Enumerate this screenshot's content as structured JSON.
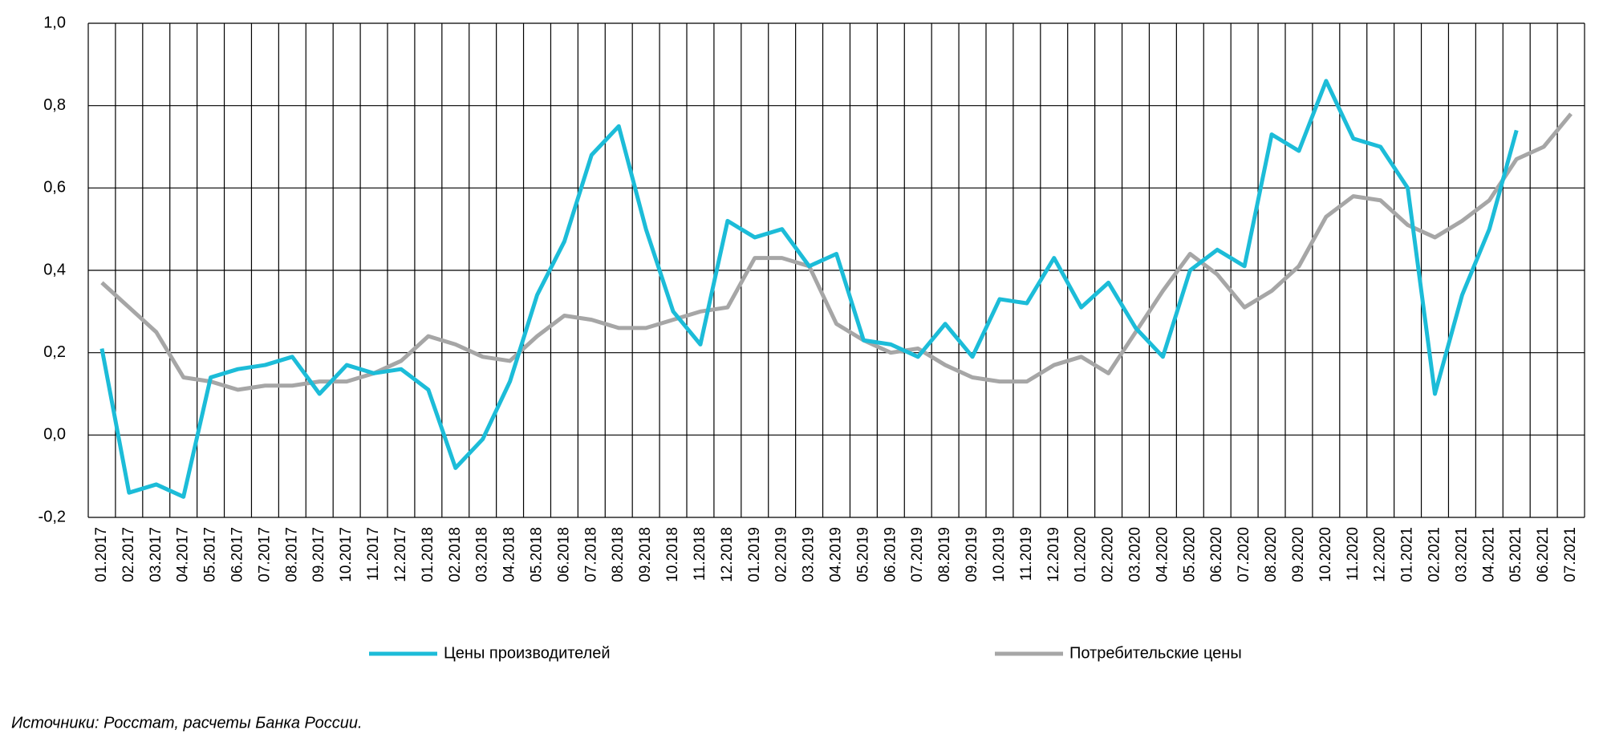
{
  "chart_data": {
    "type": "line",
    "categories": [
      "01.2017",
      "02.2017",
      "03.2017",
      "04.2017",
      "05.2017",
      "06.2017",
      "07.2017",
      "08.2017",
      "09.2017",
      "10.2017",
      "11.2017",
      "12.2017",
      "01.2018",
      "02.2018",
      "03.2018",
      "04.2018",
      "05.2018",
      "06.2018",
      "07.2018",
      "08.2018",
      "09.2018",
      "10.2018",
      "11.2018",
      "12.2018",
      "01.2019",
      "02.2019",
      "03.2019",
      "04.2019",
      "05.2019",
      "06.2019",
      "07.2019",
      "08.2019",
      "09.2019",
      "10.2019",
      "11.2019",
      "12.2019",
      "01.2020",
      "02.2020",
      "03.2020",
      "04.2020",
      "05.2020",
      "06.2020",
      "07.2020",
      "08.2020",
      "09.2020",
      "10.2020",
      "11.2020",
      "12.2020",
      "01.2021",
      "02.2021",
      "03.2021",
      "04.2021",
      "05.2021",
      "06.2021",
      "07.2021"
    ],
    "series": [
      {
        "name": "Цены производителей",
        "color": "#1cbcd8",
        "values": [
          0.21,
          -0.14,
          -0.12,
          -0.15,
          0.14,
          0.16,
          0.17,
          0.19,
          0.1,
          0.17,
          0.15,
          0.16,
          0.11,
          -0.08,
          -0.01,
          0.13,
          0.34,
          0.47,
          0.68,
          0.75,
          0.5,
          0.3,
          0.22,
          0.52,
          0.48,
          0.5,
          0.41,
          0.44,
          0.23,
          0.22,
          0.19,
          0.27,
          0.19,
          0.33,
          0.32,
          0.43,
          0.31,
          0.37,
          0.26,
          0.19,
          0.4,
          0.45,
          0.41,
          0.73,
          0.69,
          0.86,
          0.72,
          0.7,
          0.6,
          0.1,
          0.34,
          0.5,
          0.74,
          null,
          null
        ]
      },
      {
        "name": "Потребительские цены",
        "color": "#a6a6a6",
        "values": [
          0.37,
          0.31,
          0.25,
          0.14,
          0.13,
          0.11,
          0.12,
          0.12,
          0.13,
          0.13,
          0.15,
          0.18,
          0.24,
          0.22,
          0.19,
          0.18,
          0.24,
          0.29,
          0.28,
          0.26,
          0.26,
          0.28,
          0.3,
          0.31,
          0.43,
          0.43,
          0.41,
          0.27,
          0.23,
          0.2,
          0.21,
          0.17,
          0.14,
          0.13,
          0.13,
          0.17,
          0.19,
          0.15,
          0.25,
          0.35,
          0.44,
          0.39,
          0.31,
          0.35,
          0.41,
          0.53,
          0.58,
          0.57,
          0.51,
          0.48,
          0.52,
          0.57,
          0.67,
          0.7,
          0.78
        ]
      }
    ],
    "ylim": [
      -0.2,
      1.0
    ],
    "yticks": [
      {
        "value": -0.2,
        "label": "-0,2"
      },
      {
        "value": 0,
        "label": "0,0"
      },
      {
        "value": 0.2,
        "label": "0,2"
      },
      {
        "value": 0.4,
        "label": "0,4"
      },
      {
        "value": 0.6,
        "label": "0,6"
      },
      {
        "value": 0.8,
        "label": "0,8"
      },
      {
        "value": 1.0,
        "label": "1,0"
      }
    ],
    "grid": true,
    "source": "Источники: Росстат, расчеты Банка России."
  }
}
